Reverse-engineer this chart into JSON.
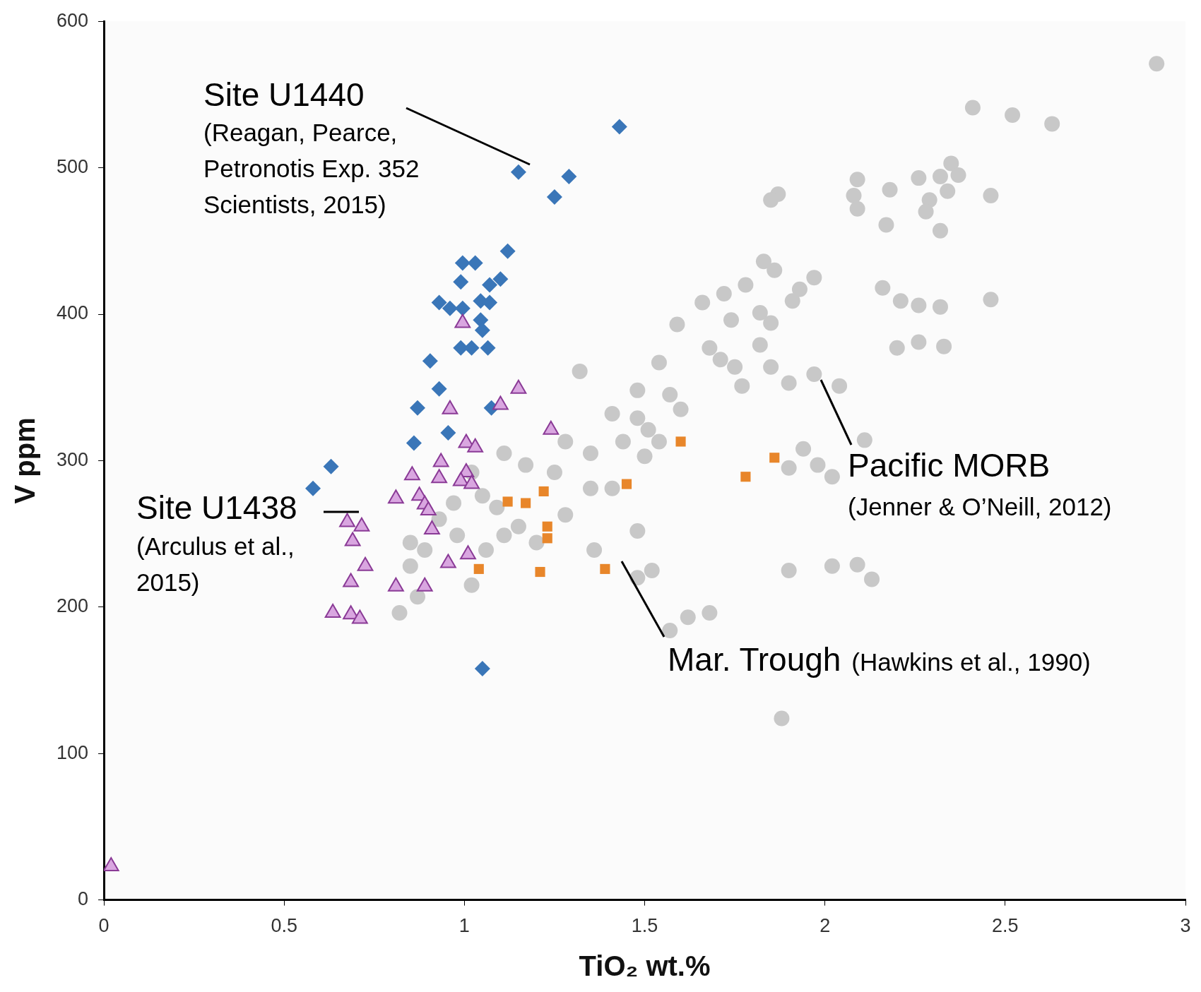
{
  "chart_data": {
    "type": "scatter",
    "xlabel": "TiO₂ wt.%",
    "ylabel": "V ppm",
    "xlim": [
      0,
      3
    ],
    "xticks": [
      0,
      0.5,
      1,
      1.5,
      2,
      2.5,
      3
    ],
    "ylim": [
      0,
      600
    ],
    "yticks": [
      0,
      100,
      200,
      300,
      400,
      500,
      600
    ],
    "grid": false,
    "legend": false,
    "series": [
      {
        "name": "Pacific MORB",
        "color": "#c8c8c8",
        "marker": "circle",
        "x": [
          2.92,
          2.41,
          2.52,
          2.63,
          2.35,
          2.37,
          2.32,
          2.34,
          2.29,
          2.28,
          2.32,
          2.46,
          2.46,
          2.18,
          2.17,
          2.09,
          2.08,
          2.09,
          2.26,
          1.87,
          1.85,
          1.83,
          1.86,
          1.97,
          1.93,
          1.91,
          1.78,
          1.72,
          1.82,
          1.85,
          1.66,
          1.74,
          1.59,
          1.54,
          1.68,
          1.71,
          1.75,
          1.82,
          1.85,
          1.9,
          1.97,
          2.04,
          1.77,
          2.16,
          2.21,
          2.26,
          2.32,
          2.2,
          2.26,
          2.33,
          1.32,
          1.48,
          1.57,
          1.6,
          1.41,
          1.48,
          1.51,
          1.54,
          1.5,
          1.44,
          1.28,
          1.35,
          1.25,
          1.17,
          1.11,
          1.28,
          1.41,
          1.48,
          1.94,
          1.98,
          1.9,
          2.02,
          2.11,
          1.9,
          2.02,
          2.09,
          2.13,
          1.68,
          1.62,
          1.57,
          1.36,
          1.48,
          1.52,
          1.88,
          1.02,
          1.05,
          0.93,
          0.97,
          0.89,
          0.85,
          0.87,
          0.82,
          1.02,
          1.06,
          1.11,
          1.15,
          1.2,
          1.35,
          1.09,
          0.98,
          0.85
        ],
        "values": [
          571,
          541,
          536,
          530,
          503,
          495,
          494,
          484,
          478,
          470,
          457,
          481,
          410,
          485,
          461,
          492,
          481,
          472,
          493,
          482,
          478,
          436,
          430,
          425,
          417,
          409,
          420,
          414,
          401,
          394,
          408,
          396,
          393,
          367,
          377,
          369,
          364,
          379,
          364,
          353,
          359,
          351,
          351,
          418,
          409,
          406,
          405,
          377,
          381,
          378,
          361,
          348,
          345,
          335,
          332,
          329,
          321,
          313,
          303,
          313,
          313,
          305,
          292,
          297,
          305,
          263,
          281,
          252,
          308,
          297,
          295,
          289,
          314,
          225,
          228,
          229,
          219,
          196,
          193,
          184,
          239,
          220,
          225,
          124,
          292,
          276,
          260,
          271,
          239,
          228,
          207,
          196,
          215,
          239,
          249,
          255,
          244,
          281,
          268,
          249,
          244
        ]
      },
      {
        "name": "Site U1440",
        "color": "#3a76b8",
        "marker": "diamond",
        "x": [
          1.43,
          1.15,
          1.29,
          1.25,
          1.12,
          1.1,
          0.995,
          1.03,
          0.99,
          1.07,
          1.045,
          1.07,
          0.93,
          0.96,
          0.995,
          1.045,
          1.05,
          0.99,
          1.02,
          1.065,
          0.905,
          0.93,
          0.87,
          0.955,
          1.075,
          0.86,
          0.58,
          0.63,
          1.05
        ],
        "values": [
          528,
          497,
          494,
          480,
          443,
          424,
          435,
          435,
          422,
          420,
          409,
          408,
          408,
          404,
          404,
          396,
          389,
          377,
          377,
          377,
          368,
          349,
          336,
          319,
          336,
          312,
          281,
          296,
          158
        ]
      },
      {
        "name": "Site U1438",
        "color": "#d9a6e0",
        "marker": "triangle",
        "x": [
          0.02,
          0.995,
          1.15,
          1.1,
          0.96,
          1.24,
          1.005,
          1.03,
          0.935,
          0.855,
          0.93,
          1.005,
          0.99,
          0.81,
          0.875,
          0.89,
          0.9,
          1.02,
          0.675,
          0.715,
          0.69,
          0.91,
          1.01,
          0.955,
          0.725,
          0.685,
          0.81,
          0.89,
          0.635,
          0.685,
          0.71
        ],
        "values": [
          23,
          394,
          349,
          338,
          335,
          321,
          312,
          309,
          299,
          290,
          288,
          292,
          286,
          274,
          276,
          270,
          266,
          284,
          258,
          255,
          245,
          253,
          236,
          230,
          228,
          217,
          214,
          214,
          196,
          195,
          192
        ]
      },
      {
        "name": "Mar. Trough",
        "color": "#e8862a",
        "marker": "square",
        "x": [
          1.6,
          1.45,
          1.86,
          1.78,
          1.12,
          1.17,
          1.22,
          1.23,
          1.23,
          1.04,
          1.21,
          1.39
        ],
        "values": [
          313,
          284,
          302,
          289,
          272,
          271,
          279,
          255,
          247,
          226,
          224,
          226
        ]
      }
    ],
    "annotations": [
      "(Jenner & O’Neill, 2012)",
      "(Reagan, Pearce, Petronotis Exp. 352 Scientists, 2015)",
      "(Arculus et al., 2015)",
      "(Hawkins et al., 1990)"
    ]
  }
}
